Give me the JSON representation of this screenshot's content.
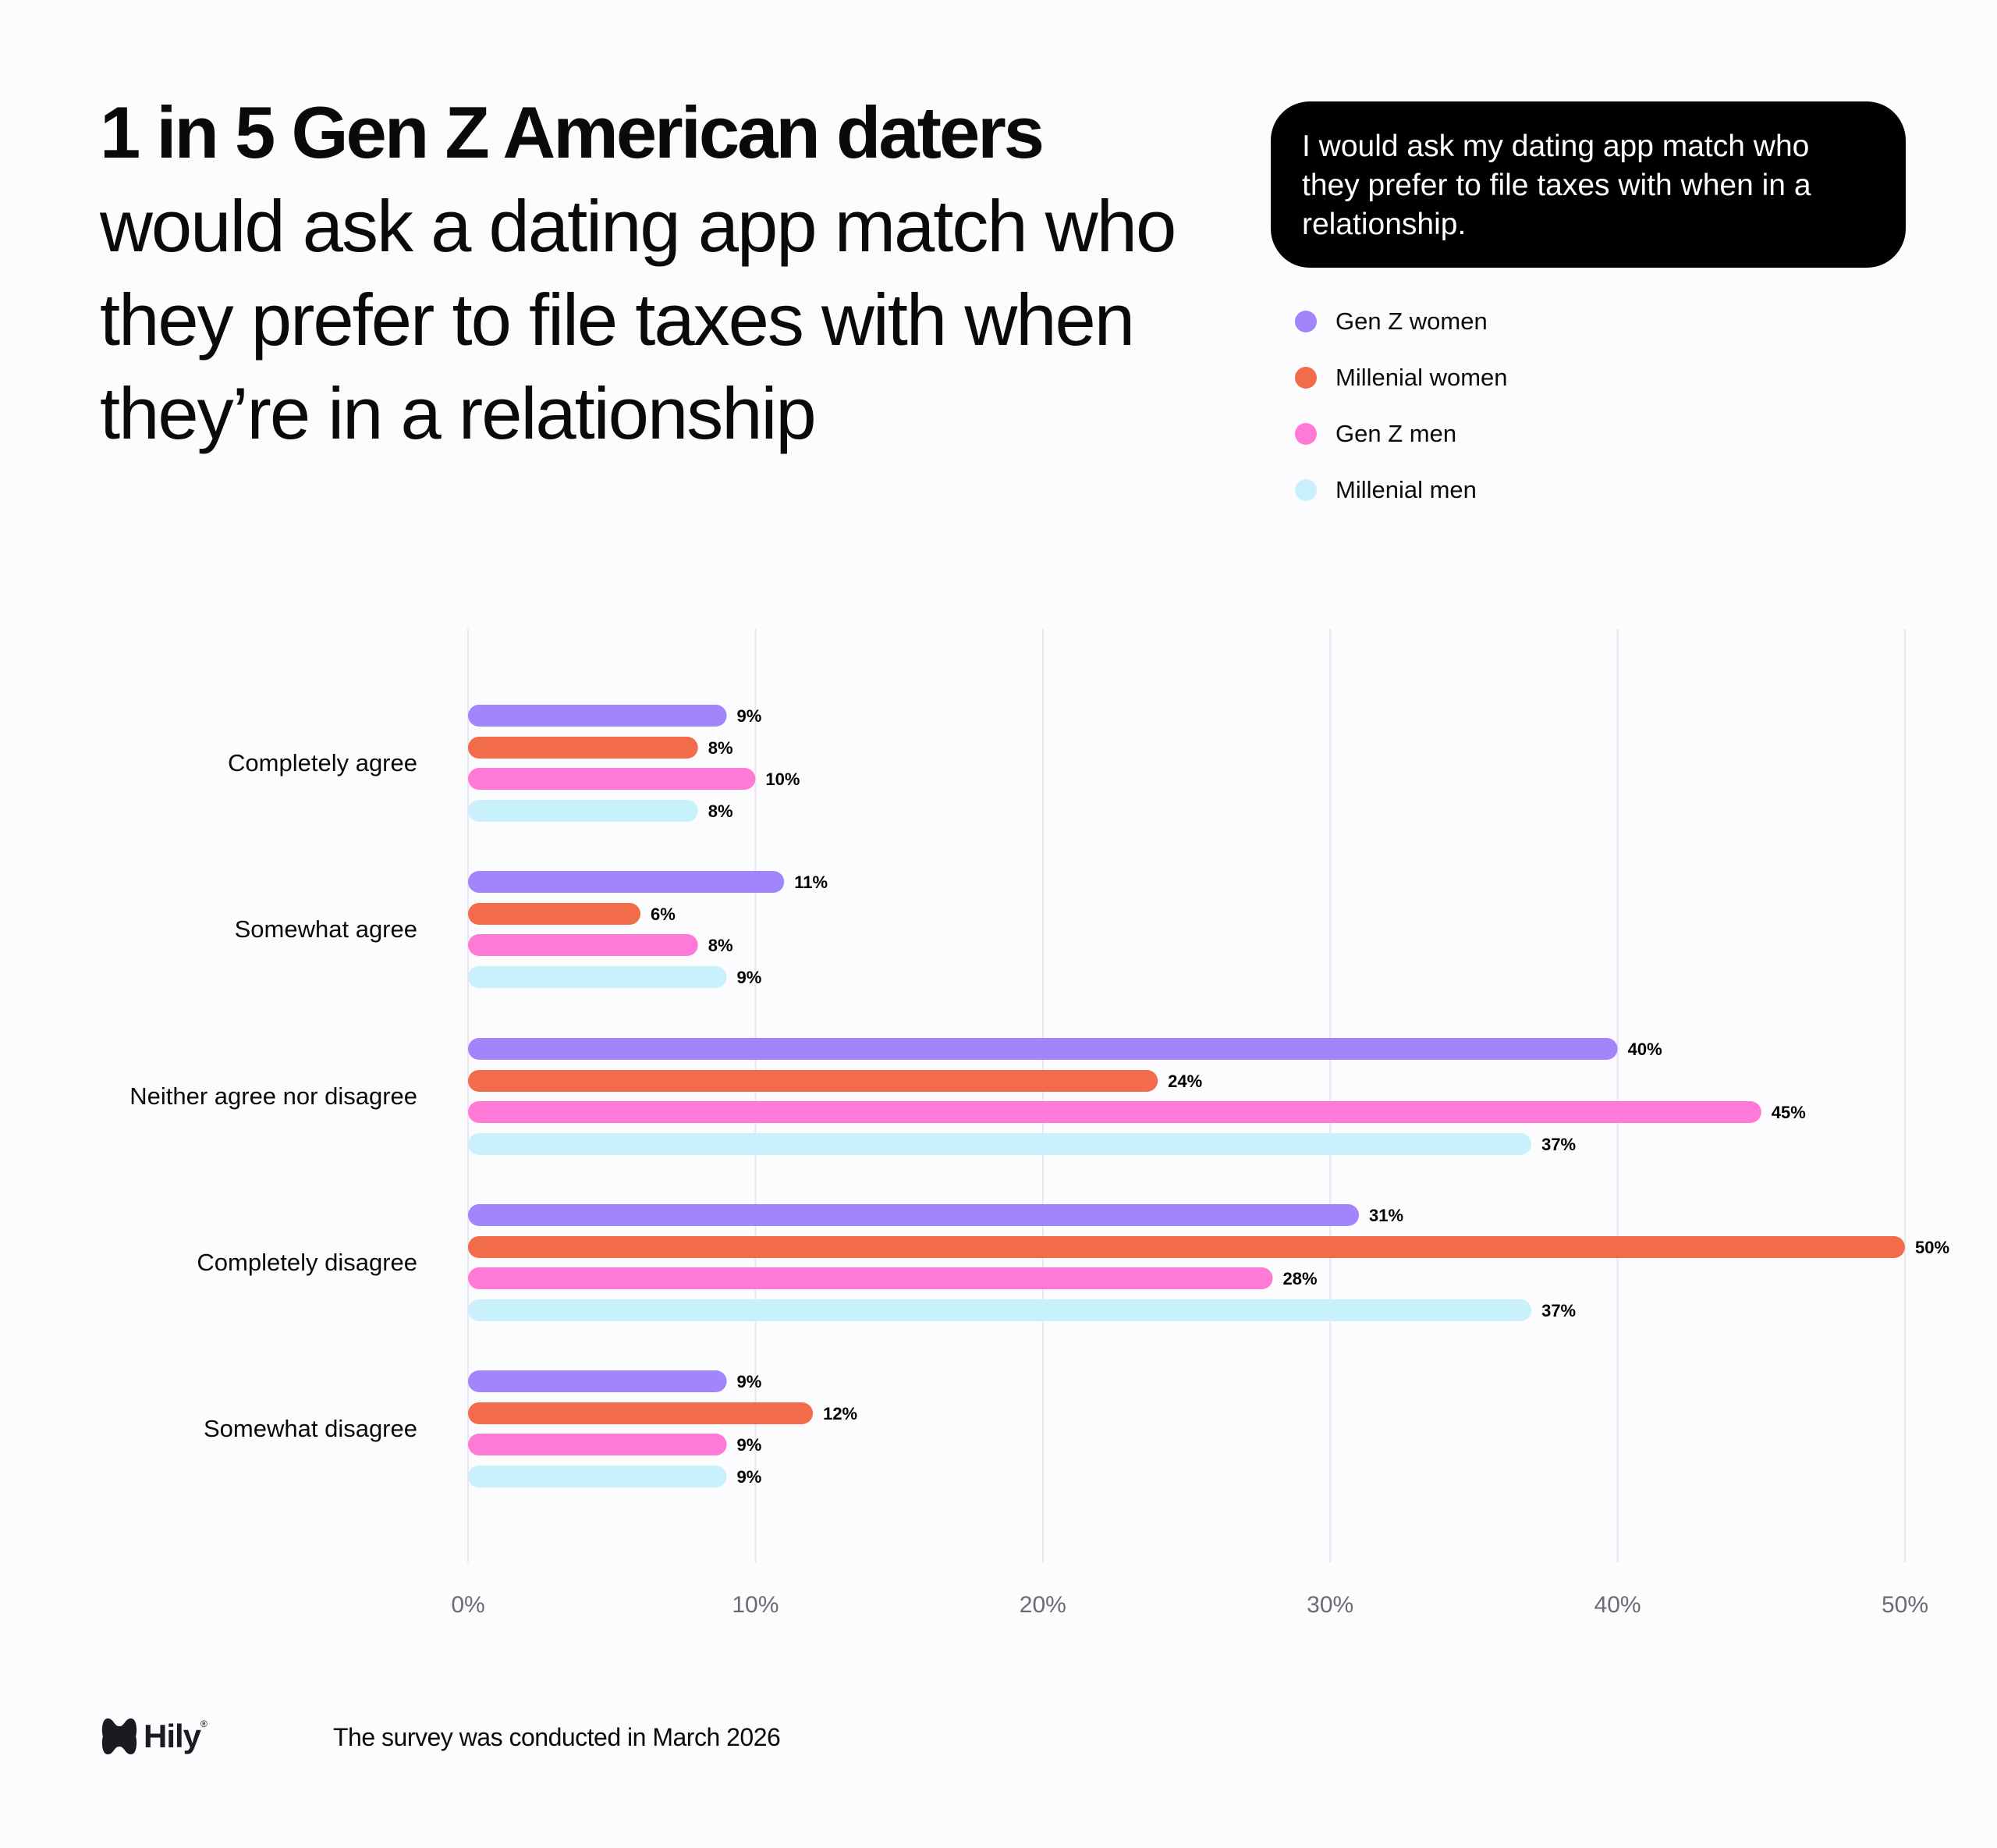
{
  "headline": {
    "bold": "1 in 5 Gen Z American daters",
    "rest": "would ask a dating app match who they prefer to file taxes with when they’re in a relationship"
  },
  "question": "I would ask my dating app match who they prefer to file taxes with when in a relationship.",
  "footer": {
    "logo": "Hily",
    "note": "The survey was conducted in March 2026"
  },
  "chart_data": {
    "type": "bar",
    "orientation": "horizontal",
    "categories": [
      "Completely agree",
      "Somewhat agree",
      "Neither agree nor disagree",
      "Completely disagree",
      "Somewhat disagree"
    ],
    "series": [
      {
        "name": "Gen Z women",
        "color": "#a385fb",
        "values": [
          9,
          11,
          40,
          31,
          9
        ]
      },
      {
        "name": "Millenial women",
        "color": "#f26b4a",
        "values": [
          8,
          6,
          24,
          50,
          12
        ]
      },
      {
        "name": "Gen Z men",
        "color": "#ff7ad6",
        "values": [
          10,
          8,
          45,
          28,
          9
        ]
      },
      {
        "name": "Millenial men",
        "color": "#c9f1fb",
        "values": [
          8,
          9,
          37,
          37,
          9
        ]
      }
    ],
    "xlim": [
      0,
      50
    ],
    "xticks": [
      "0%",
      "10%",
      "20%",
      "30%",
      "40%",
      "50%"
    ],
    "value_suffix": "%",
    "grid": true,
    "legend_position": "top-right"
  }
}
